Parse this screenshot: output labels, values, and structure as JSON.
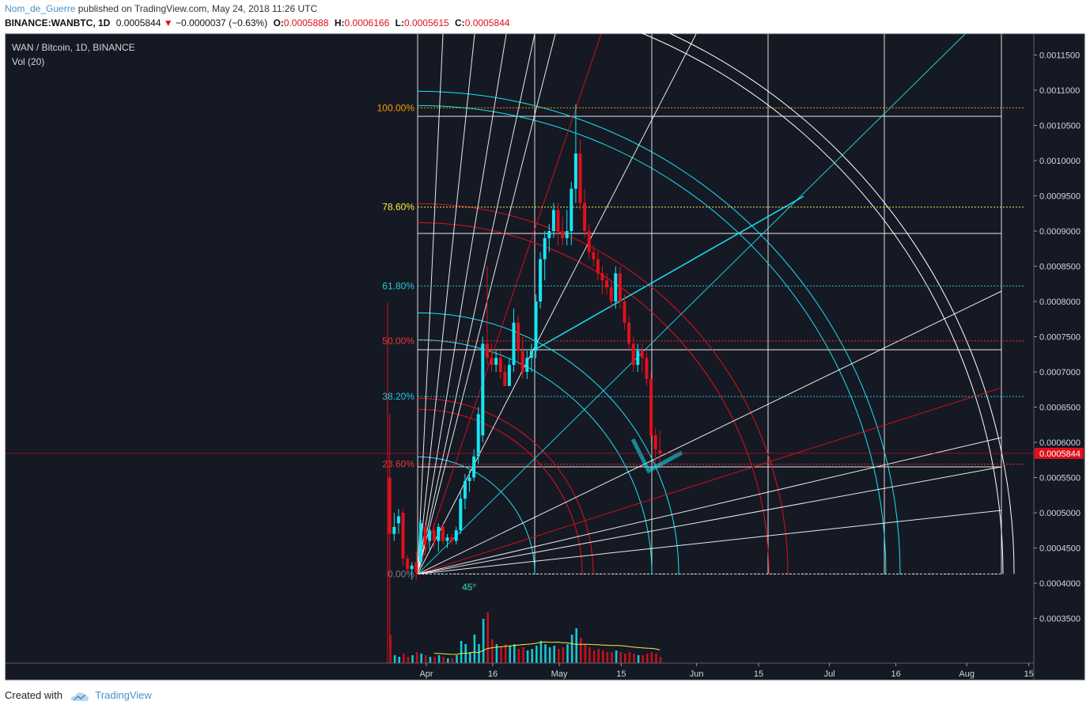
{
  "header": {
    "author": "Nom_de_Guerre",
    "published_text": "published on TradingView.com, May 24, 2018 11:26 UTC",
    "symbol_line": "BINANCE:WANBTC, 1D",
    "last": "0.0005844",
    "change": "−0.0000037 (−0.63%)",
    "o_label": "O:",
    "o": "0.0005888",
    "h_label": "H:",
    "h": "0.0006166",
    "l_label": "L:",
    "l": "0.0005615",
    "c_label": "C:",
    "c": "0.0005844"
  },
  "legend": {
    "title": "WAN / Bitcoin, 1D, BINANCE",
    "indicator": "Vol (20)"
  },
  "footer": {
    "created_with": "Created with",
    "brand": "TradingView"
  },
  "colors": {
    "bg": "#151924",
    "up": "#17e5f2",
    "down": "#e0101a",
    "grid": "#ffffff",
    "fib100": "#ff9800",
    "fib786": "#ffeb3b",
    "fib618": "#26c6da",
    "fib50": "#e53935",
    "fib382": "#26c6da",
    "fib236": "#e53935",
    "fib0": "#787b86"
  },
  "chart_data": {
    "type": "candlestick",
    "title": "WAN / Bitcoin, 1D, BINANCE",
    "y_axis": {
      "min": 0.0003,
      "max": 0.00118,
      "scale": "linear",
      "position": "right",
      "ticks": [
        "0.0011500",
        "0.0011000",
        "0.0010500",
        "0.0010000",
        "0.0009500",
        "0.0009000",
        "0.0008500",
        "0.0008000",
        "0.0007500",
        "0.0007000",
        "0.0006500",
        "0.0006000",
        "0.0005500",
        "0.0005000",
        "0.0004500",
        "0.0004000",
        "0.0003500"
      ],
      "last_price_label": "0.0005844"
    },
    "x_axis": {
      "start": "2018-03-24",
      "end": "2018-08-15",
      "ticks": [
        {
          "date": "2018-04-01",
          "label": "Apr"
        },
        {
          "date": "2018-04-16",
          "label": "16"
        },
        {
          "date": "2018-05-01",
          "label": "May"
        },
        {
          "date": "2018-05-15",
          "label": "15"
        },
        {
          "date": "2018-06-01",
          "label": "Jun"
        },
        {
          "date": "2018-06-15",
          "label": "15"
        },
        {
          "date": "2018-07-01",
          "label": "Jul"
        },
        {
          "date": "2018-07-16",
          "label": "16"
        },
        {
          "date": "2018-08-01",
          "label": "Aug"
        },
        {
          "date": "2018-08-15",
          "label": "15"
        }
      ]
    },
    "candles": [
      {
        "date": "2018-03-24",
        "o": 0.00055,
        "h": 0.00064,
        "l": 0.000305,
        "c": 0.00047,
        "v": 0.18
      },
      {
        "date": "2018-03-25",
        "o": 0.00047,
        "h": 0.0005,
        "l": 0.00046,
        "c": 0.00048,
        "v": 0.05
      },
      {
        "date": "2018-03-26",
        "o": 0.000485,
        "h": 0.000505,
        "l": 0.00047,
        "c": 0.000495,
        "v": 0.04
      },
      {
        "date": "2018-03-27",
        "o": 0.0005,
        "h": 0.000505,
        "l": 0.000425,
        "c": 0.000435,
        "v": 0.06
      },
      {
        "date": "2018-03-28",
        "o": 0.000435,
        "h": 0.00044,
        "l": 0.000415,
        "c": 0.00042,
        "v": 0.04
      },
      {
        "date": "2018-03-29",
        "o": 0.00042,
        "h": 0.00043,
        "l": 0.000405,
        "c": 0.000425,
        "v": 0.05
      },
      {
        "date": "2018-03-30",
        "o": 0.00043,
        "h": 0.000445,
        "l": 0.000405,
        "c": 0.000415,
        "v": 0.07
      },
      {
        "date": "2018-03-31",
        "o": 0.00043,
        "h": 0.00049,
        "l": 0.00042,
        "c": 0.000485,
        "v": 0.06
      },
      {
        "date": "2018-04-01",
        "o": 0.00048,
        "h": 0.000485,
        "l": 0.00044,
        "c": 0.000455,
        "v": 0.05
      },
      {
        "date": "2018-04-02",
        "o": 0.00046,
        "h": 0.00048,
        "l": 0.000445,
        "c": 0.000475,
        "v": 0.04
      },
      {
        "date": "2018-04-03",
        "o": 0.000475,
        "h": 0.000485,
        "l": 0.00045,
        "c": 0.00046,
        "v": 0.04
      },
      {
        "date": "2018-04-04",
        "o": 0.00046,
        "h": 0.000485,
        "l": 0.000445,
        "c": 0.00048,
        "v": 0.05
      },
      {
        "date": "2018-04-05",
        "o": 0.00048,
        "h": 0.000485,
        "l": 0.000455,
        "c": 0.00046,
        "v": 0.04
      },
      {
        "date": "2018-04-06",
        "o": 0.00046,
        "h": 0.00047,
        "l": 0.00045,
        "c": 0.000465,
        "v": 0.03
      },
      {
        "date": "2018-04-07",
        "o": 0.000465,
        "h": 0.00047,
        "l": 0.000455,
        "c": 0.00046,
        "v": 0.03
      },
      {
        "date": "2018-04-08",
        "o": 0.00046,
        "h": 0.00048,
        "l": 0.000455,
        "c": 0.000475,
        "v": 0.05
      },
      {
        "date": "2018-04-09",
        "o": 0.000475,
        "h": 0.00053,
        "l": 0.00047,
        "c": 0.00052,
        "v": 0.14
      },
      {
        "date": "2018-04-10",
        "o": 0.00052,
        "h": 0.000555,
        "l": 0.000505,
        "c": 0.000545,
        "v": 0.12
      },
      {
        "date": "2018-04-11",
        "o": 0.000545,
        "h": 0.00056,
        "l": 0.00053,
        "c": 0.00055,
        "v": 0.07
      },
      {
        "date": "2018-04-12",
        "o": 0.00055,
        "h": 0.00059,
        "l": 0.000545,
        "c": 0.00058,
        "v": 0.18
      },
      {
        "date": "2018-04-13",
        "o": 0.00058,
        "h": 0.00065,
        "l": 0.00057,
        "c": 0.00064,
        "v": 0.12
      },
      {
        "date": "2018-04-14",
        "o": 0.00061,
        "h": 0.00075,
        "l": 0.0006,
        "c": 0.00074,
        "v": 0.28
      },
      {
        "date": "2018-04-15",
        "o": 0.00074,
        "h": 0.00085,
        "l": 0.00071,
        "c": 0.00072,
        "v": 0.32
      },
      {
        "date": "2018-04-16",
        "o": 0.00072,
        "h": 0.00074,
        "l": 0.0007,
        "c": 0.00071,
        "v": 0.15
      },
      {
        "date": "2018-04-17",
        "o": 0.00071,
        "h": 0.00073,
        "l": 0.0007,
        "c": 0.00072,
        "v": 0.12
      },
      {
        "date": "2018-04-18",
        "o": 0.00072,
        "h": 0.00073,
        "l": 0.00069,
        "c": 0.0007,
        "v": 0.1
      },
      {
        "date": "2018-04-19",
        "o": 0.0007,
        "h": 0.00071,
        "l": 0.00068,
        "c": 0.00068,
        "v": 0.12
      },
      {
        "date": "2018-04-20",
        "o": 0.00068,
        "h": 0.00072,
        "l": 0.00068,
        "c": 0.00071,
        "v": 0.11
      },
      {
        "date": "2018-04-21",
        "o": 0.00071,
        "h": 0.00079,
        "l": 0.0007,
        "c": 0.00077,
        "v": 0.12
      },
      {
        "date": "2018-04-22",
        "o": 0.00077,
        "h": 0.00078,
        "l": 0.00071,
        "c": 0.00073,
        "v": 0.09
      },
      {
        "date": "2018-04-23",
        "o": 0.00073,
        "h": 0.00075,
        "l": 0.00069,
        "c": 0.0007,
        "v": 0.1
      },
      {
        "date": "2018-04-24",
        "o": 0.0007,
        "h": 0.00073,
        "l": 0.00069,
        "c": 0.00072,
        "v": 0.08
      },
      {
        "date": "2018-04-25",
        "o": 0.00072,
        "h": 0.00074,
        "l": 0.0007,
        "c": 0.00073,
        "v": 0.09
      },
      {
        "date": "2018-04-26",
        "o": 0.00073,
        "h": 0.00081,
        "l": 0.00072,
        "c": 0.0008,
        "v": 0.11
      },
      {
        "date": "2018-04-27",
        "o": 0.0008,
        "h": 0.00087,
        "l": 0.00079,
        "c": 0.00086,
        "v": 0.14
      },
      {
        "date": "2018-04-28",
        "o": 0.00086,
        "h": 0.0009,
        "l": 0.00083,
        "c": 0.00089,
        "v": 0.12
      },
      {
        "date": "2018-04-29",
        "o": 0.00089,
        "h": 0.00091,
        "l": 0.00087,
        "c": 0.0009,
        "v": 0.1
      },
      {
        "date": "2018-04-30",
        "o": 0.0009,
        "h": 0.00094,
        "l": 0.00089,
        "c": 0.00093,
        "v": 0.11
      },
      {
        "date": "2018-05-01",
        "o": 0.00093,
        "h": 0.00094,
        "l": 0.00088,
        "c": 0.0009,
        "v": 0.09
      },
      {
        "date": "2018-05-02",
        "o": 0.0009,
        "h": 0.00092,
        "l": 0.00088,
        "c": 0.00089,
        "v": 0.1
      },
      {
        "date": "2018-05-03",
        "o": 0.00089,
        "h": 0.00093,
        "l": 0.00088,
        "c": 0.0009,
        "v": 0.12
      },
      {
        "date": "2018-05-04",
        "o": 0.0009,
        "h": 0.00097,
        "l": 0.00088,
        "c": 0.00096,
        "v": 0.18
      },
      {
        "date": "2018-05-05",
        "o": 0.00096,
        "h": 0.00108,
        "l": 0.00094,
        "c": 0.00101,
        "v": 0.22
      },
      {
        "date": "2018-05-06",
        "o": 0.00101,
        "h": 0.00103,
        "l": 0.00093,
        "c": 0.00094,
        "v": 0.16
      },
      {
        "date": "2018-05-07",
        "o": 0.00094,
        "h": 0.00096,
        "l": 0.00089,
        "c": 0.0009,
        "v": 0.12
      },
      {
        "date": "2018-05-08",
        "o": 0.0009,
        "h": 0.00091,
        "l": 0.00086,
        "c": 0.00087,
        "v": 0.1
      },
      {
        "date": "2018-05-09",
        "o": 0.00087,
        "h": 0.00088,
        "l": 0.00085,
        "c": 0.00086,
        "v": 0.08
      },
      {
        "date": "2018-05-10",
        "o": 0.00086,
        "h": 0.00087,
        "l": 0.00083,
        "c": 0.00084,
        "v": 0.09
      },
      {
        "date": "2018-05-11",
        "o": 0.00084,
        "h": 0.00085,
        "l": 0.00081,
        "c": 0.00083,
        "v": 0.08
      },
      {
        "date": "2018-05-12",
        "o": 0.00083,
        "h": 0.00084,
        "l": 0.00081,
        "c": 0.00082,
        "v": 0.07
      },
      {
        "date": "2018-05-13",
        "o": 0.00082,
        "h": 0.00083,
        "l": 0.00079,
        "c": 0.0008,
        "v": 0.07
      },
      {
        "date": "2018-05-14",
        "o": 0.0008,
        "h": 0.00085,
        "l": 0.00079,
        "c": 0.00084,
        "v": 0.08
      },
      {
        "date": "2018-05-15",
        "o": 0.00084,
        "h": 0.00085,
        "l": 0.00079,
        "c": 0.0008,
        "v": 0.07
      },
      {
        "date": "2018-05-16",
        "o": 0.0008,
        "h": 0.00081,
        "l": 0.00076,
        "c": 0.00077,
        "v": 0.06
      },
      {
        "date": "2018-05-17",
        "o": 0.00077,
        "h": 0.00078,
        "l": 0.00073,
        "c": 0.00074,
        "v": 0.07
      },
      {
        "date": "2018-05-18",
        "o": 0.00074,
        "h": 0.00075,
        "l": 0.0007,
        "c": 0.00071,
        "v": 0.06
      },
      {
        "date": "2018-05-19",
        "o": 0.00071,
        "h": 0.00074,
        "l": 0.0007,
        "c": 0.00073,
        "v": 0.05
      },
      {
        "date": "2018-05-20",
        "o": 0.00073,
        "h": 0.00074,
        "l": 0.0007,
        "c": 0.00072,
        "v": 0.05
      },
      {
        "date": "2018-05-21",
        "o": 0.00072,
        "h": 0.00073,
        "l": 0.00068,
        "c": 0.00069,
        "v": 0.06
      },
      {
        "date": "2018-05-22",
        "o": 0.00069,
        "h": 0.0007,
        "l": 0.0006,
        "c": 0.00061,
        "v": 0.07
      },
      {
        "date": "2018-05-23",
        "o": 0.00061,
        "h": 0.00062,
        "l": 0.00057,
        "c": 0.00059,
        "v": 0.06
      },
      {
        "date": "2018-05-24",
        "o": 0.0005888,
        "h": 0.0006166,
        "l": 0.0005615,
        "c": 0.0005844,
        "v": 0.04
      }
    ],
    "volume_ma": {
      "name": "Vol (20)",
      "color": "#ffeb3b"
    },
    "fibonacci_levels": [
      {
        "label": "100.00%",
        "price": 0.001075,
        "color": "#ff9800"
      },
      {
        "label": "78.60%",
        "price": 0.000934,
        "color": "#ffeb3b"
      },
      {
        "label": "61.80%",
        "price": 0.000822,
        "color": "#26c6da"
      },
      {
        "label": "50.00%",
        "price": 0.000744,
        "color": "#e53935"
      },
      {
        "label": "38.20%",
        "price": 0.000665,
        "color": "#26c6da"
      },
      {
        "label": "23.60%",
        "price": 0.000569,
        "color": "#e53935"
      },
      {
        "label": "0.00%",
        "price": 0.000413,
        "color": "#787b86"
      }
    ],
    "gann_angle_label": "45°"
  }
}
